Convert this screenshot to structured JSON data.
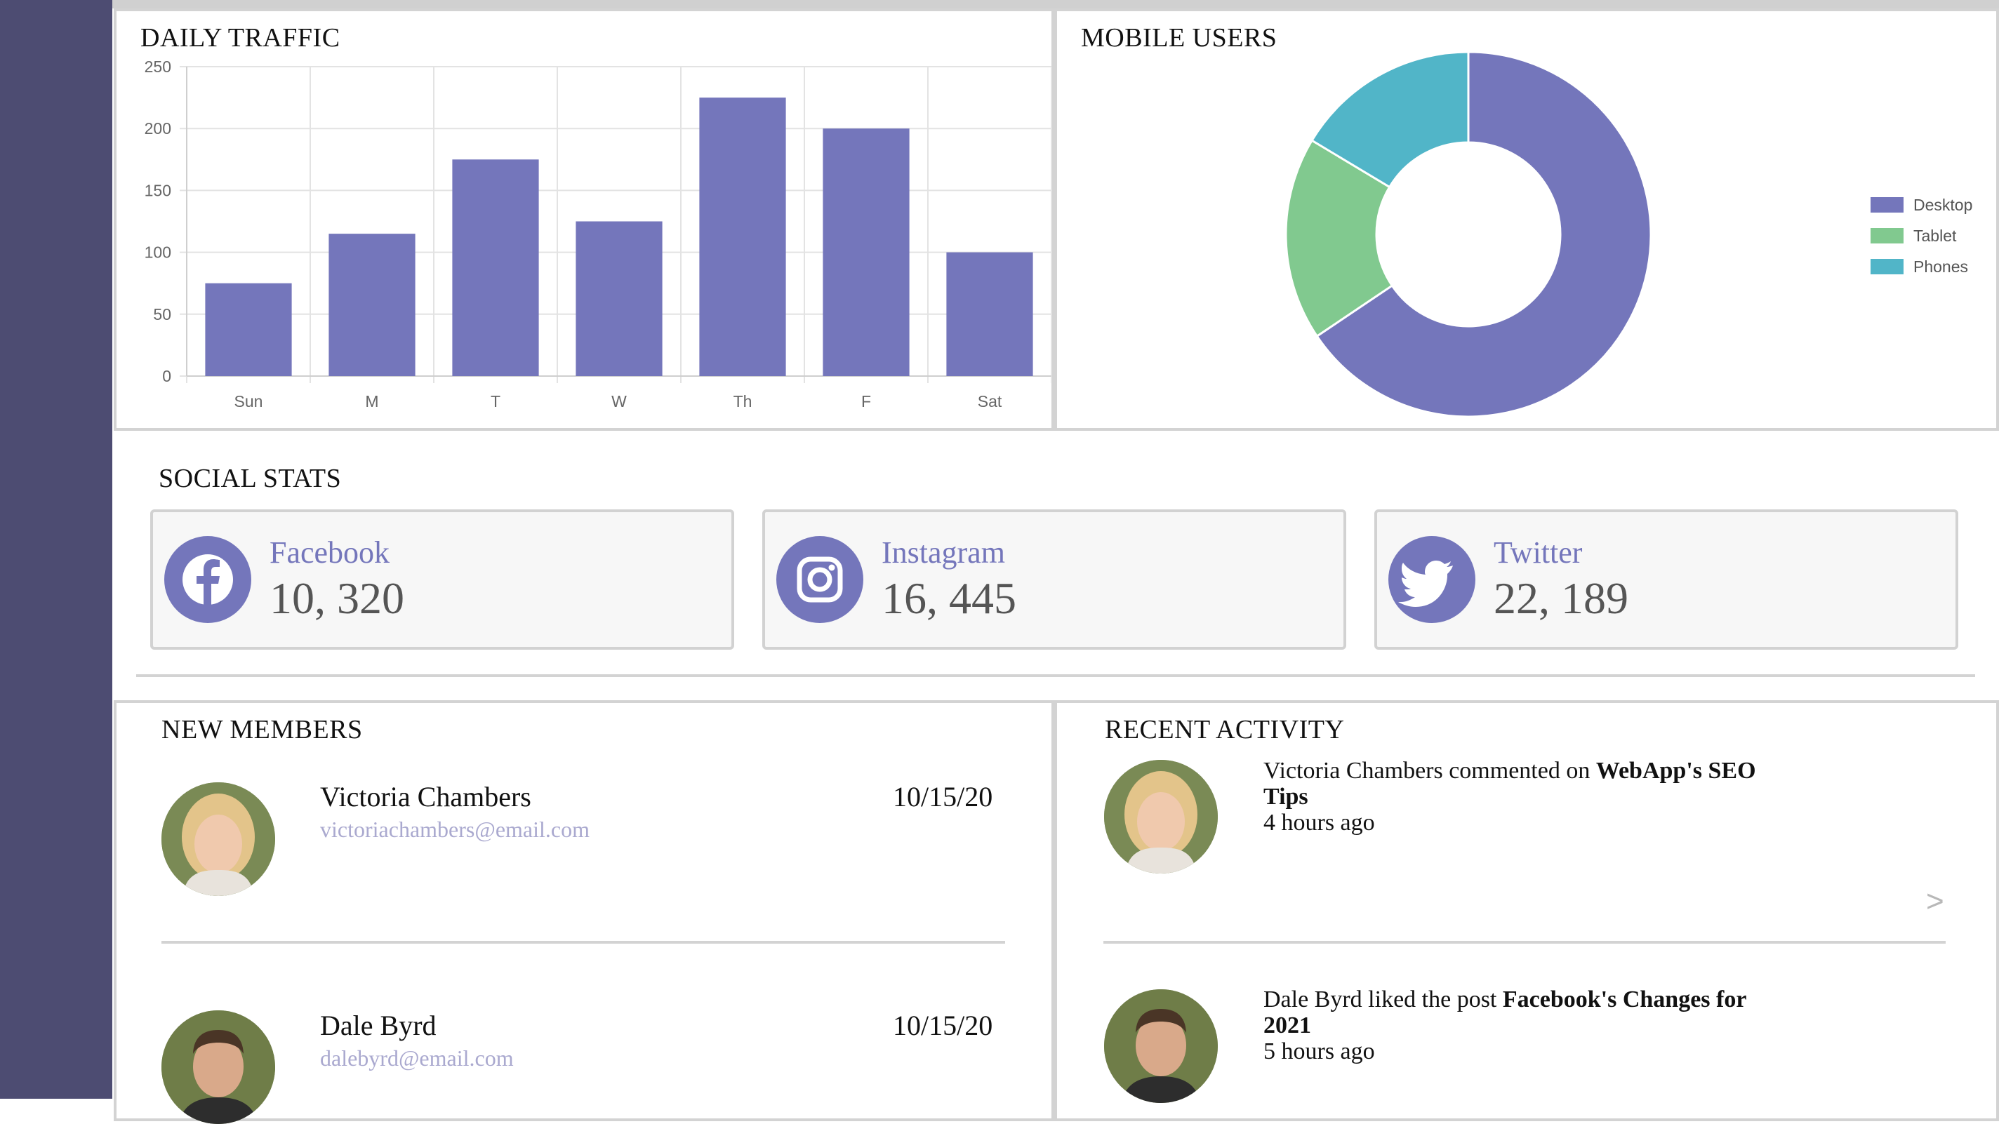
{
  "colors": {
    "sidebar": "#4d4c72",
    "accent": "#7476bb",
    "tablet": "#81c98f",
    "phones": "#51b5c8",
    "email": "#aaa9cf"
  },
  "traffic": {
    "title": "DAILY TRAFFIC"
  },
  "mobile": {
    "title": "MOBILE USERS"
  },
  "social": {
    "title": "SOCIAL STATS",
    "cards": [
      {
        "name": "Facebook",
        "count": "10, 320",
        "icon": "facebook-icon"
      },
      {
        "name": "Instagram",
        "count": "16, 445",
        "icon": "instagram-icon"
      },
      {
        "name": "Twitter",
        "count": "22, 189",
        "icon": "twitter-icon"
      }
    ]
  },
  "members": {
    "title": "NEW MEMBERS",
    "items": [
      {
        "name": "Victoria Chambers",
        "email": "victoriachambers@email.com",
        "date": "10/15/20"
      },
      {
        "name": "Dale Byrd",
        "email": "dalebyrd@email.com",
        "date": "10/15/20"
      }
    ]
  },
  "activity": {
    "title": "RECENT ACTIVITY",
    "chevron": ">",
    "items": [
      {
        "text": "Victoria Chambers commented on ",
        "bold": "WebApp's SEO Tips",
        "time": "4 hours ago"
      },
      {
        "text": "Dale Byrd liked the post ",
        "bold": "Facebook's Changes for 2021",
        "time": "5 hours ago"
      }
    ]
  },
  "chart_data": [
    {
      "type": "bar",
      "title": "DAILY TRAFFIC",
      "categories": [
        "Sun",
        "M",
        "T",
        "W",
        "Th",
        "F",
        "Sat"
      ],
      "values": [
        75,
        115,
        175,
        125,
        225,
        200,
        100
      ],
      "ylim": [
        0,
        250
      ],
      "yticks": [
        "0",
        "50",
        "100",
        "150",
        "200",
        "250"
      ],
      "grid": true,
      "color": "#7476bb"
    },
    {
      "type": "pie",
      "title": "MOBILE USERS",
      "donut": true,
      "labels": [
        "Desktop",
        "Tablet",
        "Phones"
      ],
      "values": [
        2000,
        550,
        500
      ],
      "colors": [
        "#7476bb",
        "#81c98f",
        "#51b5c8"
      ],
      "legend": "right"
    }
  ]
}
